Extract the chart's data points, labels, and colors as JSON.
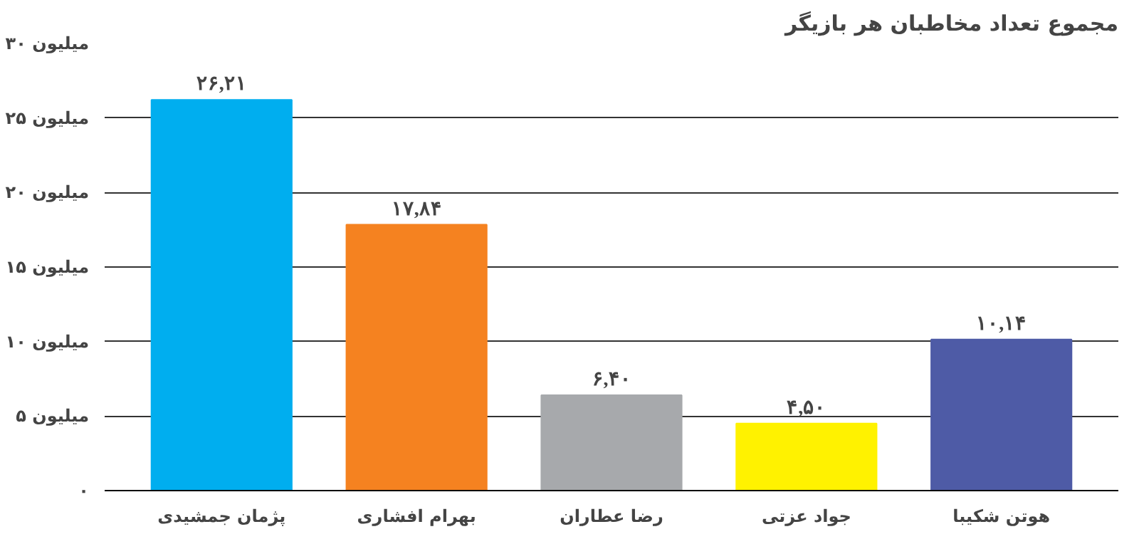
{
  "chart_data": {
    "type": "bar",
    "title": "مجموع تعداد مخاطبان هر بازیگر",
    "categories": [
      "پژمان جمشیدی",
      "بهرام افشاری",
      "رضا عطاران",
      "جواد عزتی",
      "هوتن شکیبا"
    ],
    "values": [
      26.21,
      17.84,
      6.4,
      4.5,
      10.14
    ],
    "colors": [
      "#00aeef",
      "#f58220",
      "#a7a9ac",
      "#fff200",
      "#4e5ba6"
    ],
    "value_labels": [
      "۲۶,۲۱",
      "۱۷,۸۴",
      "۶,۴۰",
      "۴,۵۰",
      "۱۰,۱۴"
    ],
    "ylim": [
      0,
      30
    ],
    "yticks": [
      {
        "value": 0,
        "label": "۰"
      },
      {
        "value": 5,
        "label": "۵ میلیون"
      },
      {
        "value": 10,
        "label": "۱۰ میلیون"
      },
      {
        "value": 15,
        "label": "۱۵ میلیون"
      },
      {
        "value": 20,
        "label": "۲۰ میلیون"
      },
      {
        "value": 25,
        "label": "۲۵ میلیون"
      },
      {
        "value": 30,
        "label": "۳۰ میلیون"
      }
    ],
    "grid": "y"
  }
}
